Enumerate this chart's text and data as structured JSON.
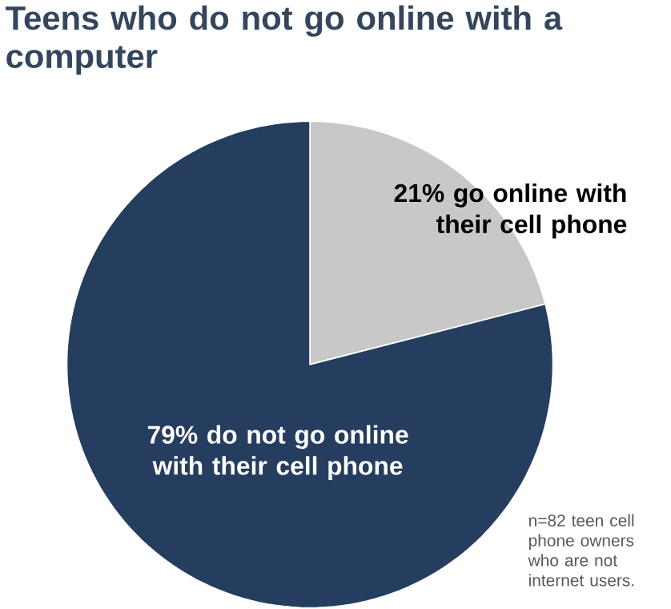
{
  "chart_data": {
    "type": "pie",
    "title": "Teens who do not go online with a computer",
    "categories": [
      "21% go online with their cell phone",
      "79% do not go online with their cell phone"
    ],
    "values": [
      21,
      79
    ],
    "colors": [
      "#c8c8c8",
      "#253d5e"
    ],
    "annotations": [
      "n=82 teen cell phone owners who are not internet users."
    ]
  }
}
